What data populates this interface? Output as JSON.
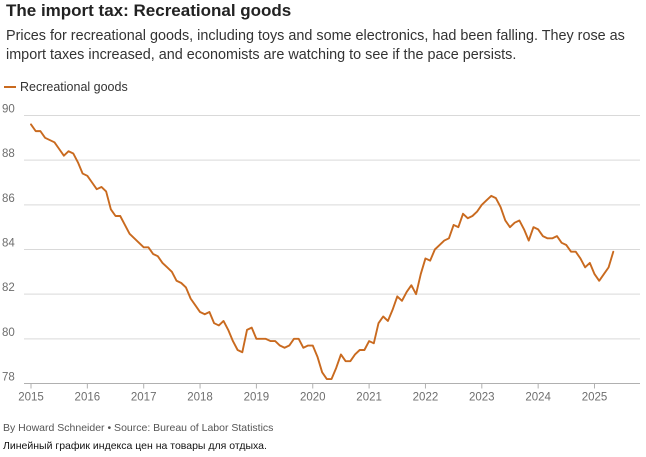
{
  "title": "The import tax: Recreational goods",
  "subtitle": "Prices for recreational goods, including toys and some electronics, had been falling. They rose as import taxes increased, and economists are watching to see if the pace persists.",
  "byline": "By Howard Schneider • Source: Bureau of Labor Statistics",
  "caption": "Линейный график индекса цен на товары для отдыха.",
  "colors": {
    "series": "#c96a1f",
    "grid": "#d9d9d9",
    "axis": "#b0b0b0",
    "tick_text": "#6e6e6e"
  },
  "chart_data": {
    "type": "line",
    "title": "The import tax: Recreational goods",
    "xlabel": "",
    "ylabel": "",
    "xlim": [
      2015.0,
      2025.55
    ],
    "ylim": [
      78,
      90
    ],
    "y_ticks": [
      78,
      80,
      82,
      84,
      86,
      88,
      90
    ],
    "x_ticks": [
      2015,
      2016,
      2017,
      2018,
      2019,
      2020,
      2021,
      2022,
      2023,
      2024,
      2025
    ],
    "x_tick_labels": [
      "2015",
      "2016",
      "2017",
      "2018",
      "2019",
      "2020",
      "2021",
      "2022",
      "2023",
      "2024",
      "2025"
    ],
    "grid": "horizontal",
    "legend": "top-left",
    "series": [
      {
        "name": "Recreational goods",
        "start": 2015.0,
        "step": 0.0833333,
        "values": [
          89.6,
          89.3,
          89.3,
          89.0,
          88.9,
          88.8,
          88.5,
          88.2,
          88.4,
          88.3,
          87.9,
          87.4,
          87.3,
          87.0,
          86.7,
          86.8,
          86.6,
          85.8,
          85.5,
          85.5,
          85.1,
          84.7,
          84.5,
          84.3,
          84.1,
          84.1,
          83.8,
          83.7,
          83.4,
          83.2,
          83.0,
          82.6,
          82.5,
          82.3,
          81.8,
          81.5,
          81.2,
          81.1,
          81.2,
          80.7,
          80.6,
          80.8,
          80.4,
          79.9,
          79.5,
          79.4,
          80.4,
          80.5,
          80.0,
          80.0,
          80.0,
          79.9,
          79.9,
          79.7,
          79.6,
          79.7,
          80.0,
          80.0,
          79.6,
          79.7,
          79.7,
          79.2,
          78.5,
          78.2,
          78.2,
          78.7,
          79.3,
          79.0,
          79.0,
          79.3,
          79.5,
          79.5,
          79.9,
          79.8,
          80.7,
          81.0,
          80.8,
          81.3,
          81.9,
          81.7,
          82.1,
          82.4,
          82.0,
          82.9,
          83.6,
          83.5,
          84.0,
          84.2,
          84.4,
          84.5,
          85.1,
          85.0,
          85.6,
          85.4,
          85.5,
          85.7,
          86.0,
          86.2,
          86.4,
          86.3,
          85.9,
          85.3,
          85.0,
          85.2,
          85.3,
          84.9,
          84.4,
          85.0,
          84.9,
          84.6,
          84.5,
          84.5,
          84.6,
          84.3,
          84.2,
          83.9,
          83.9,
          83.6,
          83.2,
          83.4,
          82.9,
          82.6,
          82.9,
          83.2,
          83.9
        ]
      }
    ]
  }
}
